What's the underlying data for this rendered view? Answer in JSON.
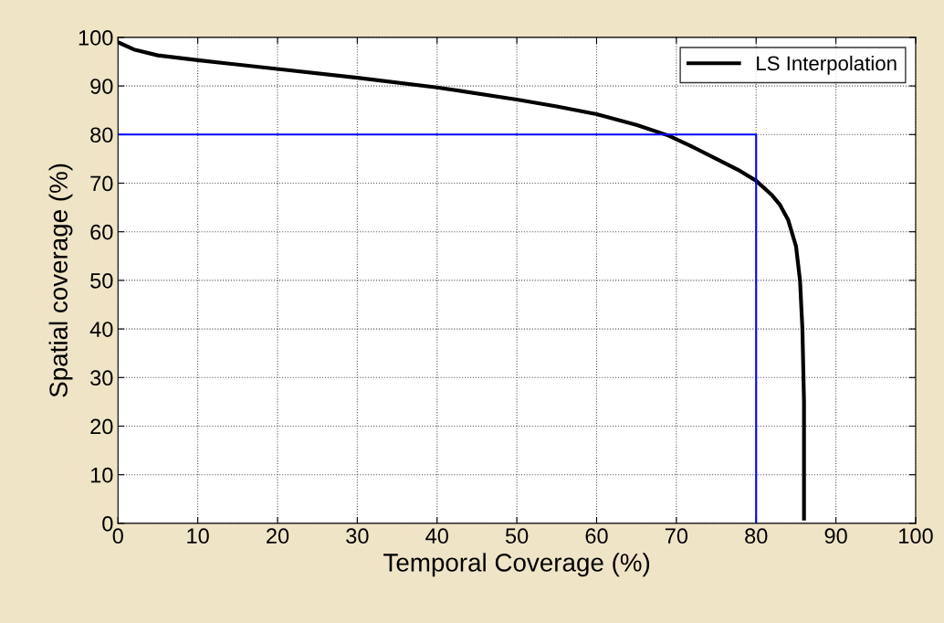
{
  "chart_data": {
    "type": "line",
    "xlabel": "Temporal Coverage (%)",
    "ylabel": "Spatial coverage (%)",
    "xlim": [
      0,
      100
    ],
    "ylim": [
      0,
      100
    ],
    "xticks": [
      0,
      10,
      20,
      30,
      40,
      50,
      60,
      70,
      80,
      90,
      100
    ],
    "yticks": [
      0,
      10,
      20,
      30,
      40,
      50,
      60,
      70,
      80,
      90,
      100
    ],
    "grid": true,
    "legend": "top right",
    "marker": "none",
    "line_style": "solid",
    "series": [
      {
        "name": "LS Interpolation",
        "color": "#000000",
        "x": [
          0,
          2,
          5,
          10,
          20,
          30,
          40,
          50,
          55,
          60,
          65,
          69,
          72,
          75,
          78,
          80,
          82,
          83,
          84,
          85,
          85.5,
          85.8,
          86,
          86,
          86
        ],
        "values": [
          99,
          97.5,
          96.3,
          95.3,
          93.5,
          91.7,
          89.7,
          87.2,
          85.8,
          84.2,
          82,
          79.8,
          77.5,
          75,
          72.5,
          70.5,
          67.5,
          65.5,
          62.5,
          57,
          50,
          40,
          25,
          10,
          1
        ]
      },
      {
        "color": "#0000ff",
        "x": [
          0,
          80,
          80
        ],
        "values": [
          80,
          80,
          0
        ]
      }
    ]
  }
}
